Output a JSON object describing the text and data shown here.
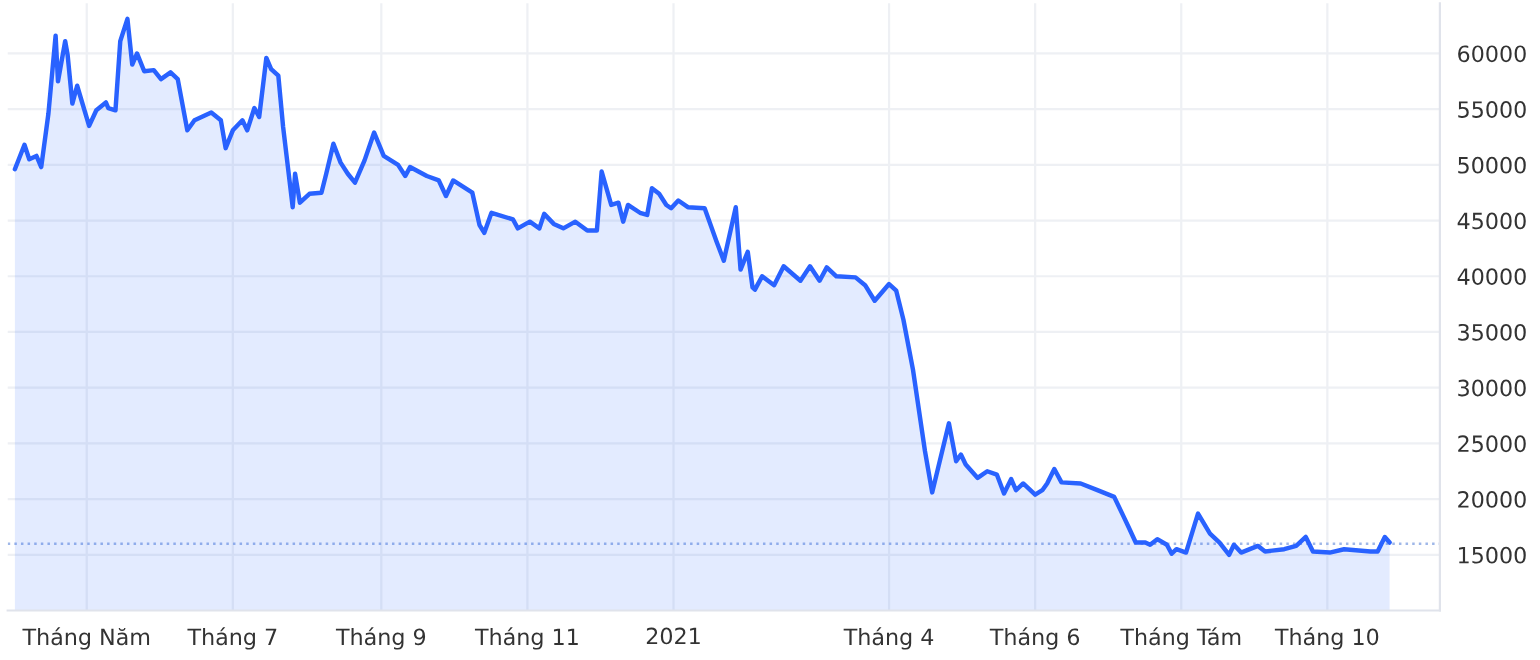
{
  "chart_data": {
    "type": "area",
    "x": [
      "2020-04-01",
      "2020-04-05",
      "2020-04-07",
      "2020-04-10",
      "2020-04-12",
      "2020-04-15",
      "2020-04-18",
      "2020-04-19",
      "2020-04-22",
      "2020-04-23",
      "2020-04-25",
      "2020-04-27",
      "2020-05-02",
      "2020-05-05",
      "2020-05-09",
      "2020-05-10",
      "2020-05-13",
      "2020-05-15",
      "2020-05-18",
      "2020-05-20",
      "2020-05-22",
      "2020-05-25",
      "2020-05-29",
      "2020-06-01",
      "2020-06-05",
      "2020-06-08",
      "2020-06-12",
      "2020-06-15",
      "2020-06-22",
      "2020-06-26",
      "2020-06-28",
      "2020-07-01",
      "2020-07-05",
      "2020-07-07",
      "2020-07-10",
      "2020-07-12",
      "2020-07-15",
      "2020-07-17",
      "2020-07-20",
      "2020-07-22",
      "2020-07-26",
      "2020-07-27",
      "2020-07-29",
      "2020-08-02",
      "2020-08-07",
      "2020-08-09",
      "2020-08-12",
      "2020-08-15",
      "2020-08-18",
      "2020-08-21",
      "2020-08-25",
      "2020-08-29",
      "2020-09-02",
      "2020-09-08",
      "2020-09-11",
      "2020-09-13",
      "2020-09-20",
      "2020-09-25",
      "2020-09-28",
      "2020-10-01",
      "2020-10-09",
      "2020-10-12",
      "2020-10-14",
      "2020-10-17",
      "2020-10-26",
      "2020-10-28",
      "2020-11-02",
      "2020-11-06",
      "2020-11-08",
      "2020-11-12",
      "2020-11-16",
      "2020-11-21",
      "2020-11-26",
      "2020-11-30",
      "2020-12-02",
      "2020-12-06",
      "2020-12-09",
      "2020-12-11",
      "2020-12-13",
      "2020-12-18",
      "2020-12-21",
      "2020-12-23",
      "2020-12-26",
      "2020-12-29",
      "2020-12-31",
      "2021-01-03",
      "2021-01-07",
      "2021-01-14",
      "2021-01-19",
      "2021-01-22",
      "2021-01-27",
      "2021-01-29",
      "2021-02-01",
      "2021-02-03",
      "2021-02-04",
      "2021-02-07",
      "2021-02-12",
      "2021-02-16",
      "2021-02-23",
      "2021-02-27",
      "2021-03-03",
      "2021-03-06",
      "2021-03-10",
      "2021-03-18",
      "2021-03-22",
      "2021-03-26",
      "2021-04-01",
      "2021-04-04",
      "2021-04-07",
      "2021-04-11",
      "2021-04-16",
      "2021-04-19",
      "2021-04-26",
      "2021-04-29",
      "2021-05-01",
      "2021-05-03",
      "2021-05-08",
      "2021-05-12",
      "2021-05-16",
      "2021-05-19",
      "2021-05-22",
      "2021-05-24",
      "2021-05-27",
      "2021-06-01",
      "2021-06-04",
      "2021-06-06",
      "2021-06-09",
      "2021-06-12",
      "2021-06-20",
      "2021-06-27",
      "2021-07-04",
      "2021-07-08",
      "2021-07-10",
      "2021-07-13",
      "2021-07-17",
      "2021-07-19",
      "2021-07-22",
      "2021-07-26",
      "2021-07-28",
      "2021-07-30",
      "2021-08-03",
      "2021-08-08",
      "2021-08-13",
      "2021-08-17",
      "2021-08-21",
      "2021-08-23",
      "2021-08-26",
      "2021-09-02",
      "2021-09-05",
      "2021-09-13",
      "2021-09-18",
      "2021-09-22",
      "2021-09-25",
      "2021-10-02",
      "2021-10-08",
      "2021-10-19",
      "2021-10-22",
      "2021-10-25",
      "2021-10-27"
    ],
    "series": [
      {
        "color": "#2962ff",
        "values": [
          49600,
          51800,
          50500,
          50800,
          49800,
          54600,
          61600,
          57500,
          61100,
          59900,
          55500,
          57100,
          53500,
          54900,
          55600,
          55100,
          54900,
          61100,
          63100,
          59000,
          60000,
          58400,
          58500,
          57700,
          58300,
          57700,
          53100,
          54000,
          54700,
          54000,
          51500,
          53100,
          54000,
          53100,
          55100,
          54300,
          59600,
          58600,
          58000,
          53400,
          46200,
          49200,
          46600,
          47400,
          47500,
          49200,
          51900,
          50200,
          49200,
          48400,
          50400,
          52900,
          50800,
          50000,
          49000,
          49800,
          49000,
          48600,
          47200,
          48600,
          47500,
          44600,
          43900,
          45700,
          45100,
          44300,
          44900,
          44300,
          45600,
          44700,
          44300,
          44900,
          44100,
          44100,
          49400,
          46400,
          46600,
          44900,
          46400,
          45700,
          45500,
          47900,
          47400,
          46400,
          46100,
          46800,
          46200,
          46100,
          43100,
          41400,
          46200,
          40600,
          42200,
          39000,
          38800,
          40000,
          39200,
          40900,
          39600,
          40900,
          39600,
          40800,
          40000,
          39900,
          39200,
          37800,
          39300,
          38700,
          36100,
          31600,
          24300,
          20600,
          26800,
          23400,
          24000,
          23100,
          21900,
          22500,
          22200,
          20500,
          21800,
          20800,
          21400,
          20400,
          20800,
          21400,
          22700,
          21500,
          21400,
          20800,
          20200,
          18400,
          17500,
          16100,
          16100,
          15900,
          16400,
          15900,
          15100,
          15500,
          15200,
          18700,
          16900,
          16100,
          15000,
          15900,
          15200,
          15800,
          15300,
          15500,
          15800,
          16600,
          15300,
          15200,
          15500,
          15300,
          15300,
          16600,
          16100
        ]
      }
    ],
    "xlim": [
      "2020-03-29",
      "2021-11-17"
    ],
    "xticks": [
      {
        "value": "2020-05-01",
        "label": "Tháng Năm"
      },
      {
        "value": "2020-07-01",
        "label": "Tháng 7"
      },
      {
        "value": "2020-09-01",
        "label": "Tháng 9"
      },
      {
        "value": "2020-11-01",
        "label": "Tháng 11"
      },
      {
        "value": "2021-01-01",
        "label": "2021"
      },
      {
        "value": "2021-04-01",
        "label": "Tháng 4"
      },
      {
        "value": "2021-06-01",
        "label": "Tháng 6"
      },
      {
        "value": "2021-08-01",
        "label": "Tháng Tám"
      },
      {
        "value": "2021-10-01",
        "label": "Tháng 10"
      }
    ],
    "ylim": [
      10000,
      64500
    ],
    "yticks": [
      15000,
      20000,
      25000,
      30000,
      35000,
      40000,
      45000,
      50000,
      55000,
      60000
    ],
    "ref_lines": [
      {
        "axis": "y",
        "value": 16000,
        "color": "#9fb7e8",
        "line_style": "dotted"
      }
    ],
    "grid": true
  }
}
